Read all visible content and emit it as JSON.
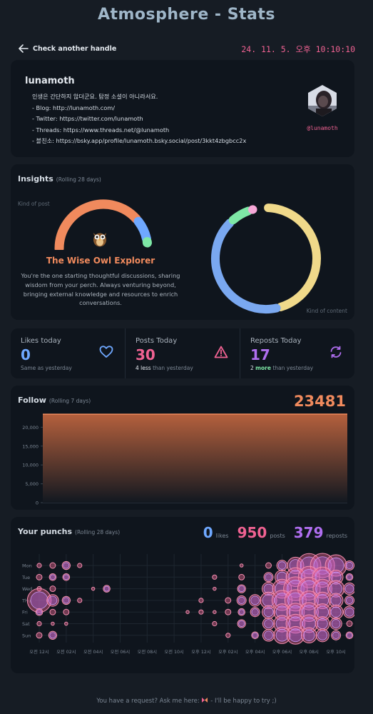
{
  "page": {
    "title": "Atmosphere - Stats"
  },
  "topbar": {
    "back_label": "Check another handle",
    "timestamp": "24. 11. 5. 오후 10:10:10"
  },
  "profile": {
    "handle": "lunamoth",
    "at_handle": "@lunamoth",
    "bio_lines": [
      "인생은 간단하지 않더군요. 탐정 소설이 아니라서요.",
      "- Blog: http://lunamoth.com/",
      "- Twitter: https://twitter.com/lunamoth",
      "- Threads: https://www.threads.net/@lunamoth",
      "- 블친소: https://bsky.app/profile/lunamoth.bsky.social/post/3kkt4zbgbcc2x"
    ]
  },
  "insights": {
    "title": "Insights",
    "subtitle": "(Rolling 28 days)",
    "kind_of_post_label": "Kind of post",
    "kind_of_content_label": "Kind of content",
    "persona_title": "The Wise Owl Explorer",
    "persona_description": "You're the one starting thoughtful discussions, sharing wisdom from your perch. Always venturing beyond, bringing external knowledge and resources to enrich conversations.",
    "persona_icon": "owl-icon",
    "kind_of_post_gauge": [
      {
        "color": "#f08a5d",
        "fraction": 0.78
      },
      {
        "color": "#6fa8ff",
        "fraction": 0.16
      },
      {
        "color": "#7ee8a6",
        "fraction": 0.03
      }
    ],
    "kind_of_content_donut": [
      {
        "color": "#f0d98a",
        "fraction": 0.46
      },
      {
        "color": "#7aa8f0",
        "fraction": 0.42
      },
      {
        "color": "#7ee8a6",
        "fraction": 0.07
      },
      {
        "color": "#f7a8d8",
        "fraction": 0.01
      }
    ]
  },
  "stats": [
    {
      "label": "Likes today",
      "value": "0",
      "color": "#6fa8ff",
      "icon": "heart-icon",
      "sub": "Same as yesterday"
    },
    {
      "label": "Posts Today",
      "value": "30",
      "color": "#f06292",
      "icon": "warning-triangle-icon",
      "delta": "4",
      "delta_word": "less",
      "sub_tail": "than yesterday"
    },
    {
      "label": "Reposts Today",
      "value": "17",
      "color": "#b06ef0",
      "icon": "repost-icon",
      "delta": "2",
      "delta_word": "more",
      "sub_tail": "than yesterday"
    }
  ],
  "follow": {
    "title": "Follow",
    "subtitle": "(Rolling 7 days)",
    "count": "23481",
    "color": "#f08a5d"
  },
  "punchcard": {
    "title": "Your punchs",
    "subtitle": "(Rolling 28 days)",
    "likes_total": "0",
    "likes_label": "likes",
    "likes_color": "#6fa8ff",
    "posts_total": "950",
    "posts_label": "posts",
    "posts_color": "#f06292",
    "reposts_total": "379",
    "reposts_label": "reposts",
    "reposts_color": "#b06ef0"
  },
  "chart_data": [
    {
      "type": "area",
      "title": "Follow",
      "ylim": [
        0,
        23481
      ],
      "y_ticks": [
        "0",
        "5,000",
        "10,000",
        "15,000",
        "20,000"
      ],
      "series": [
        {
          "values": [
            23462,
            23465,
            23468,
            23471,
            23474,
            23478,
            23481
          ]
        }
      ],
      "color": "#f08a5d"
    },
    {
      "type": "scatter",
      "title": "Your punchs",
      "days": [
        "Mon",
        "Tue",
        "Wed",
        "Thu",
        "Fri",
        "Sat",
        "Sun"
      ],
      "hour_labels": [
        "오전 12시",
        "오전 02시",
        "오전 04시",
        "오전 06시",
        "오전 08시",
        "오전 10시",
        "오후 12시",
        "오후 02시",
        "오후 04시",
        "오후 06시",
        "오후 08시",
        "오후 10시"
      ],
      "cells": [
        [
          0,
          0,
          2
        ],
        [
          0,
          1,
          3
        ],
        [
          0,
          2,
          5
        ],
        [
          0,
          3,
          2
        ],
        [
          0,
          15,
          1
        ],
        [
          0,
          17,
          3
        ],
        [
          0,
          18,
          7
        ],
        [
          0,
          19,
          12
        ],
        [
          0,
          20,
          18
        ],
        [
          0,
          21,
          20
        ],
        [
          0,
          22,
          16
        ],
        [
          0,
          23,
          6
        ],
        [
          1,
          0,
          3
        ],
        [
          1,
          1,
          4
        ],
        [
          1,
          2,
          4
        ],
        [
          1,
          13,
          2
        ],
        [
          1,
          15,
          3
        ],
        [
          1,
          17,
          6
        ],
        [
          1,
          18,
          10
        ],
        [
          1,
          19,
          14
        ],
        [
          1,
          20,
          16
        ],
        [
          1,
          21,
          15
        ],
        [
          1,
          22,
          10
        ],
        [
          1,
          23,
          4
        ],
        [
          2,
          0,
          2
        ],
        [
          2,
          1,
          3
        ],
        [
          2,
          4,
          1
        ],
        [
          2,
          5,
          4
        ],
        [
          2,
          13,
          1
        ],
        [
          2,
          15,
          5
        ],
        [
          2,
          17,
          9
        ],
        [
          2,
          18,
          14
        ],
        [
          2,
          19,
          18
        ],
        [
          2,
          20,
          17
        ],
        [
          2,
          21,
          14
        ],
        [
          2,
          22,
          12
        ],
        [
          2,
          23,
          8
        ],
        [
          3,
          0,
          18
        ],
        [
          3,
          1,
          8
        ],
        [
          3,
          2,
          5
        ],
        [
          3,
          3,
          2
        ],
        [
          3,
          12,
          2
        ],
        [
          3,
          14,
          3
        ],
        [
          3,
          15,
          6
        ],
        [
          3,
          16,
          8
        ],
        [
          3,
          17,
          12
        ],
        [
          3,
          18,
          15
        ],
        [
          3,
          19,
          16
        ],
        [
          3,
          20,
          14
        ],
        [
          3,
          21,
          12
        ],
        [
          3,
          22,
          10
        ],
        [
          3,
          23,
          6
        ],
        [
          4,
          0,
          4
        ],
        [
          4,
          1,
          3
        ],
        [
          4,
          2,
          3
        ],
        [
          4,
          11,
          1
        ],
        [
          4,
          12,
          2
        ],
        [
          4,
          13,
          1
        ],
        [
          4,
          14,
          3
        ],
        [
          4,
          15,
          4
        ],
        [
          4,
          16,
          6
        ],
        [
          4,
          17,
          9
        ],
        [
          4,
          18,
          12
        ],
        [
          4,
          19,
          13
        ],
        [
          4,
          20,
          14
        ],
        [
          4,
          21,
          12
        ],
        [
          4,
          22,
          10
        ],
        [
          4,
          23,
          8
        ],
        [
          5,
          0,
          2
        ],
        [
          5,
          1,
          1
        ],
        [
          5,
          2,
          1
        ],
        [
          5,
          13,
          2
        ],
        [
          5,
          15,
          5
        ],
        [
          5,
          17,
          8
        ],
        [
          5,
          18,
          12
        ],
        [
          5,
          19,
          14
        ],
        [
          5,
          20,
          13
        ],
        [
          5,
          21,
          10
        ],
        [
          5,
          22,
          8
        ],
        [
          5,
          23,
          3
        ],
        [
          6,
          0,
          3
        ],
        [
          6,
          1,
          5
        ],
        [
          6,
          14,
          2
        ],
        [
          6,
          16,
          4
        ],
        [
          6,
          17,
          8
        ],
        [
          6,
          18,
          12
        ],
        [
          6,
          19,
          13
        ],
        [
          6,
          20,
          11
        ],
        [
          6,
          21,
          9
        ],
        [
          6,
          22,
          6
        ],
        [
          6,
          23,
          4
        ]
      ]
    }
  ]
}
